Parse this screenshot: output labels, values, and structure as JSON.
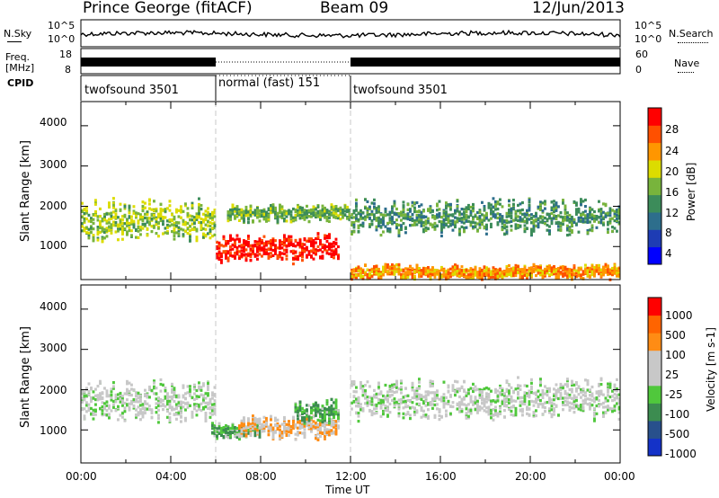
{
  "header": {
    "station": "Prince George (fitACF)",
    "beam": "Beam 09",
    "date": "12/Jun/2013"
  },
  "summary": {
    "nsky_label": "N.Sky",
    "nsky_ticks": [
      "10^5",
      "10^0"
    ],
    "nsearch_label": "N.Search",
    "nsearch_ticks": [
      "10^5",
      "10^0"
    ],
    "freq_label_line1": "Freq.",
    "freq_label_line2": "[MHz]",
    "freq_ticks": [
      "18",
      "8"
    ],
    "nave_label": "Nave",
    "nave_ticks": [
      "60",
      "0"
    ],
    "cpid_label": "CPID",
    "cpid_segments": [
      {
        "label": "twofsound 3501",
        "start": "00:00",
        "end": "06:00"
      },
      {
        "label": "normal (fast) 151",
        "start": "06:00",
        "end": "12:00"
      },
      {
        "label": "twofsound 3501",
        "start": "12:00",
        "end": "24:00"
      }
    ]
  },
  "axes": {
    "ylabel": "Slant Range [km]",
    "xlabel": "Time UT",
    "yticks": [
      "4000",
      "3000",
      "2000",
      "1000"
    ],
    "xticks": [
      "00:00",
      "04:00",
      "08:00",
      "12:00",
      "16:00",
      "20:00",
      "00:00"
    ]
  },
  "power_colorbar": {
    "label": "Power [dB]",
    "ticks": [
      "28",
      "24",
      "20",
      "16",
      "12",
      "8",
      "4"
    ],
    "colors": [
      "#0000ff",
      "#1e3cb4",
      "#2d6e8c",
      "#3c8c5a",
      "#78b43c",
      "#dcdc00",
      "#ff9600",
      "#ff5000",
      "#ff0000"
    ]
  },
  "velocity_colorbar": {
    "label": "Velocity [m s-1]",
    "ticks": [
      "1000",
      "500",
      "100",
      "25",
      "-25",
      "-100",
      "-500",
      "-1000"
    ],
    "colors": [
      "#1432c8",
      "#28508c",
      "#3c8c50",
      "#50c83c",
      "#c8c8c8",
      "#c8c8c8",
      "#ff8c14",
      "#ff6400",
      "#ff0000"
    ]
  },
  "chart_data": [
    {
      "type": "heatmap",
      "title": "",
      "quantity": "Power",
      "units": "dB",
      "xlabel": "Time UT",
      "ylabel": "Slant Range [km]",
      "xlim": [
        "00:00",
        "24:00"
      ],
      "ylim": [
        180,
        4600
      ],
      "clim": [
        0,
        30
      ],
      "features": [
        {
          "time_start_h": 0.0,
          "time_end_h": 6.0,
          "range_center_km": 1700,
          "range_width_km": 700,
          "power_db": 16
        },
        {
          "time_start_h": 6.0,
          "time_end_h": 11.5,
          "range_center_km": 1000,
          "range_width_km": 500,
          "power_db": 28
        },
        {
          "time_start_h": 6.5,
          "time_end_h": 12.0,
          "range_center_km": 1850,
          "range_width_km": 300,
          "power_db": 14
        },
        {
          "time_start_h": 12.0,
          "time_end_h": 24.0,
          "range_center_km": 1750,
          "range_width_km": 600,
          "power_db": 12
        },
        {
          "time_start_h": 12.0,
          "time_end_h": 24.0,
          "range_center_km": 400,
          "range_width_km": 250,
          "power_db": 22
        }
      ]
    },
    {
      "type": "heatmap",
      "title": "",
      "quantity": "Velocity",
      "units": "m s-1",
      "xlabel": "Time UT",
      "ylabel": "Slant Range [km]",
      "xlim": [
        "00:00",
        "24:00"
      ],
      "ylim": [
        180,
        4600
      ],
      "clim": [
        -1000,
        1000
      ],
      "features": [
        {
          "time_start_h": 0.0,
          "time_end_h": 6.0,
          "range_center_km": 1750,
          "range_width_km": 700,
          "velocity_ms": 0
        },
        {
          "time_start_h": 5.8,
          "time_end_h": 8.0,
          "range_center_km": 1000,
          "range_width_km": 300,
          "velocity_ms": -300
        },
        {
          "time_start_h": 7.0,
          "time_end_h": 11.5,
          "range_center_km": 1100,
          "range_width_km": 400,
          "velocity_ms": 300
        },
        {
          "time_start_h": 9.5,
          "time_end_h": 11.5,
          "range_center_km": 1500,
          "range_width_km": 400,
          "velocity_ms": -300
        },
        {
          "time_start_h": 12.0,
          "time_end_h": 24.0,
          "range_center_km": 1800,
          "range_width_km": 700,
          "velocity_ms": 0
        }
      ]
    }
  ]
}
